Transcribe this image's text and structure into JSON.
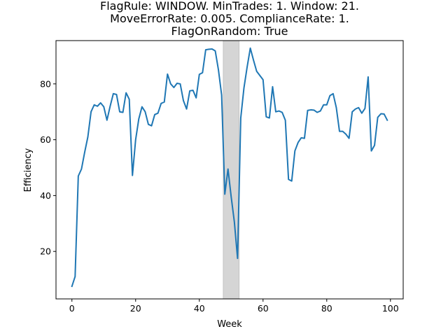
{
  "chart_data": {
    "type": "line",
    "title_lines": [
      "FlagRule: WINDOW. MinTrades: 1. Window: 21.",
      "MoveErrorRate: 0.005. ComplianceRate: 1.",
      "FlagOnRandom: True"
    ],
    "xlabel": "Week",
    "ylabel": "Efficiency",
    "xlim": [
      -5,
      104
    ],
    "ylim": [
      3,
      95.5
    ],
    "xticks": [
      0,
      20,
      40,
      60,
      80,
      100
    ],
    "yticks": [
      20,
      40,
      60,
      80
    ],
    "grid": false,
    "line_color": "#1f77b4",
    "highlight_color": "#d5d5d5",
    "highlight_x": [
      47.5,
      52.5
    ],
    "series": [
      {
        "x": [
          0,
          1,
          2,
          3,
          4,
          5,
          6,
          7,
          8,
          9,
          10,
          11,
          12,
          13,
          14,
          15,
          16,
          17,
          18,
          19,
          20,
          21,
          22,
          23,
          24,
          25,
          26,
          27,
          28,
          29,
          30,
          31,
          32,
          33,
          34,
          35,
          36,
          37,
          38,
          39,
          40,
          41,
          42,
          43,
          44,
          45,
          46,
          47,
          48,
          49,
          50,
          51,
          52,
          53,
          54,
          55,
          56,
          57,
          58,
          59,
          60,
          61,
          62,
          63,
          64,
          65,
          66,
          67,
          68,
          69,
          70,
          71,
          72,
          73,
          74,
          75,
          76,
          77,
          78,
          79,
          80,
          81,
          82,
          83,
          84,
          85,
          86,
          87,
          88,
          89,
          90,
          91,
          92,
          93,
          94,
          95,
          96,
          97,
          98,
          99
        ],
        "values": [
          7.5,
          11,
          47,
          49.5,
          55.5,
          61,
          70,
          72.5,
          72,
          73.2,
          71.8,
          67,
          72,
          76.5,
          76.2,
          70,
          69.8,
          76.8,
          74.5,
          47.2,
          60,
          67.5,
          71.8,
          70,
          65.5,
          65,
          69,
          69.5,
          73,
          73.5,
          83.5,
          80,
          78.7,
          80.2,
          80,
          74,
          71,
          77.5,
          77.7,
          75,
          83.4,
          84,
          92.2,
          92.4,
          92.5,
          91.8,
          85,
          76,
          40.5,
          49.5,
          39.5,
          30.5,
          17.5,
          67.8,
          78.5,
          86,
          92.8,
          88.5,
          84.5,
          83,
          81.5,
          68.2,
          67.8,
          79,
          70,
          70.3,
          69.8,
          67,
          45.8,
          45.2,
          56,
          59,
          60.7,
          60.5,
          70.5,
          70.7,
          70.6,
          69.8,
          70.3,
          72.5,
          72.5,
          75.8,
          76.5,
          71.5,
          63,
          63,
          62,
          60.5,
          70,
          71,
          71.5,
          69.5,
          71.2,
          82.5,
          56,
          58,
          68,
          69.3,
          69.2,
          67
        ]
      }
    ]
  }
}
